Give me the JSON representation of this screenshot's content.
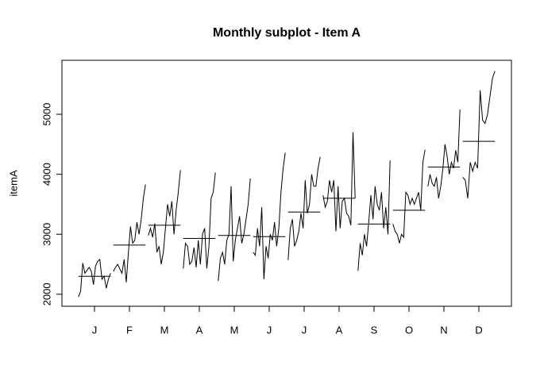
{
  "chart_data": {
    "type": "monthplot",
    "title": "Monthly subplot - Item A",
    "ylabel": "itemA",
    "categories": [
      "J",
      "F",
      "M",
      "A",
      "M",
      "J",
      "J",
      "A",
      "S",
      "O",
      "N",
      "D"
    ],
    "subseries": [
      [
        1960,
        2050,
        2520,
        2350,
        2400,
        2450,
        2380,
        2160,
        2470,
        2550,
        2580,
        2250,
        2300,
        2100,
        2250,
        2350
      ],
      [
        2380,
        2450,
        2500,
        2420,
        2350,
        2580,
        2200,
        2700,
        3130,
        2850,
        2900,
        3200,
        3000,
        3250,
        3600,
        3830
      ],
      [
        2980,
        3100,
        2950,
        3180,
        2700,
        2800,
        2500,
        2700,
        3100,
        3500,
        3300,
        3550,
        3000,
        3400,
        3700,
        4070
      ],
      [
        2430,
        2850,
        2800,
        2500,
        2550,
        2780,
        2450,
        2900,
        2500,
        3000,
        3100,
        2430,
        2800,
        3600,
        3700,
        4030
      ],
      [
        2220,
        2600,
        2700,
        2500,
        2900,
        3000,
        3800,
        2550,
        2900,
        3100,
        3300,
        2850,
        3000,
        3250,
        3500,
        3930
      ],
      [
        2700,
        2650,
        3100,
        2800,
        3450,
        2250,
        2800,
        2600,
        3000,
        2900,
        3200,
        2800,
        3100,
        3700,
        4100,
        4360
      ],
      [
        2570,
        3100,
        3250,
        2800,
        2900,
        3050,
        3350,
        3100,
        3900,
        3350,
        3500,
        4000,
        3800,
        3800,
        4100,
        4290
      ],
      [
        3650,
        3450,
        3550,
        3900,
        3700,
        3900,
        3050,
        3800,
        3100,
        3550,
        3600,
        3350,
        3300,
        3150,
        4700,
        3600
      ],
      [
        2390,
        2850,
        2650,
        3000,
        2800,
        3200,
        3650,
        3250,
        3800,
        3500,
        3400,
        3700,
        3100,
        3450,
        3000,
        4230
      ],
      [
        3170,
        3050,
        3000,
        2850,
        3000,
        2950,
        3700,
        3650,
        3500,
        3600,
        3500,
        3600,
        3700,
        3400,
        4200,
        4410
      ],
      [
        3800,
        4000,
        3850,
        3800,
        3950,
        3600,
        3800,
        4100,
        4500,
        4300,
        4000,
        4200,
        4100,
        4400,
        4200,
        5080
      ],
      [
        3950,
        3900,
        3600,
        4200,
        4050,
        4200,
        4100,
        5400,
        4900,
        4850,
        5000,
        5300,
        5600,
        5720
      ]
    ],
    "means": [
      2300,
      2820,
      3150,
      2930,
      2980,
      2960,
      3370,
      3600,
      3170,
      3400,
      4120,
      4550
    ],
    "color": "#000000",
    "ylim": [
      1800,
      5900
    ],
    "yticks": [
      2000,
      3000,
      4000,
      5000
    ]
  }
}
